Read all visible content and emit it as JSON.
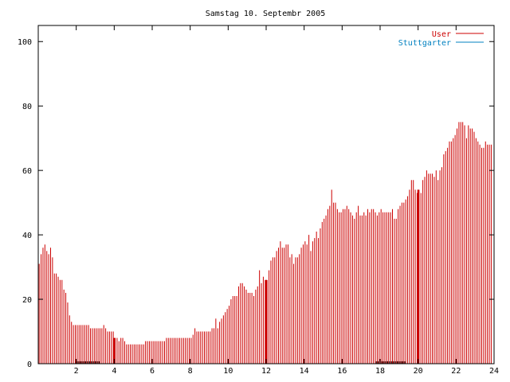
{
  "chart_data": {
    "type": "bar",
    "title": "Samstag 10. Septembr 2005",
    "xlabel": "",
    "ylabel": "",
    "xlim": [
      0,
      24
    ],
    "ylim": [
      0,
      105
    ],
    "x_ticks": [
      2,
      4,
      6,
      8,
      10,
      12,
      14,
      16,
      18,
      20,
      22,
      24
    ],
    "y_ticks": [
      0,
      20,
      40,
      60,
      80,
      100
    ],
    "x_tick_labels": [
      "2",
      "4",
      "6",
      "8",
      "10",
      "12",
      "14",
      "16",
      "18",
      "20",
      "22",
      "24"
    ],
    "y_tick_labels": [
      "0",
      "20",
      "40",
      "60",
      "80",
      "100"
    ],
    "grid": false,
    "legend_position": "top-right",
    "interval_hours": 0.1,
    "series": [
      {
        "name": "User",
        "color": "#cc0000",
        "values": [
          31,
          34,
          36,
          37,
          35,
          34,
          36,
          33,
          28,
          28,
          27,
          26,
          26,
          23,
          22,
          19,
          15,
          13,
          12,
          12,
          12,
          12,
          12,
          12,
          12,
          12,
          12,
          11,
          11,
          11,
          11,
          11,
          11,
          11,
          12,
          11,
          10,
          10,
          10,
          10,
          8,
          8,
          7,
          8,
          8,
          7,
          6,
          6,
          6,
          6,
          6,
          6,
          6,
          6,
          6,
          6,
          7,
          7,
          7,
          7,
          7,
          7,
          7,
          7,
          7,
          7,
          7,
          8,
          8,
          8,
          8,
          8,
          8,
          8,
          8,
          8,
          8,
          8,
          8,
          8,
          8,
          9,
          11,
          10,
          10,
          10,
          10,
          10,
          10,
          10,
          10,
          11,
          11,
          14,
          11,
          13,
          14,
          15,
          16,
          17,
          18,
          20,
          21,
          21,
          21,
          24,
          25,
          25,
          24,
          23,
          22,
          22,
          22,
          21,
          23,
          24,
          29,
          25,
          27,
          26,
          26,
          29,
          32,
          33,
          33,
          35,
          36,
          38,
          36,
          36,
          37,
          37,
          33,
          34,
          31,
          33,
          33,
          34,
          36,
          37,
          38,
          37,
          40,
          35,
          38,
          39,
          41,
          39,
          42,
          44,
          45,
          46,
          48,
          49,
          54,
          50,
          50,
          48,
          47,
          47,
          48,
          48,
          49,
          48,
          47,
          46,
          45,
          47,
          49,
          46,
          46,
          47,
          46,
          48,
          47,
          48,
          48,
          47,
          46,
          47,
          48,
          47,
          47,
          47,
          47,
          47,
          48,
          45,
          45,
          48,
          49,
          50,
          50,
          51,
          52,
          54,
          57,
          57,
          54,
          53,
          54,
          53,
          57,
          58,
          60,
          59,
          59,
          59,
          58,
          60,
          57,
          60,
          61,
          65,
          66,
          67,
          69,
          69,
          70,
          71,
          73,
          75,
          75,
          75,
          74,
          70,
          74,
          73,
          73,
          72,
          70,
          69,
          68,
          67,
          67,
          69,
          68,
          68,
          68
        ],
        "spikes": [
          4.0,
          12.0,
          20.0
        ]
      },
      {
        "name": "Stuttgarter",
        "color": "#0080c0",
        "segments": [
          [
            2.0,
            3.2
          ],
          [
            17.8,
            19.3
          ]
        ],
        "value": 0.5
      }
    ]
  }
}
